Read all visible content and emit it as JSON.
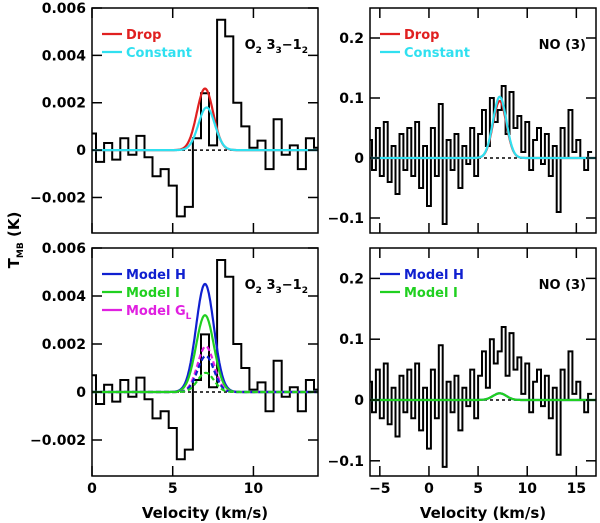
{
  "chart_data": [
    {
      "type": "line",
      "panel": "top-left",
      "xlim": [
        0,
        14
      ],
      "ylim": [
        -0.0035,
        0.006
      ],
      "xticks": [
        0,
        5,
        10
      ],
      "yticks": [
        -0.002,
        0,
        0.002,
        0.004,
        0.006
      ],
      "ytick_labels": [
        "−0.002",
        "0",
        "0.002",
        "0.004",
        "0.006"
      ],
      "annotation": {
        "main": "O",
        "s1": "2",
        "mid": " 3",
        "s2": "3",
        "mid2": "−1",
        "s3": "2"
      },
      "legend": [
        {
          "name": "Drop",
          "color": "#e02020"
        },
        {
          "name": "Constant",
          "color": "#30e0f0"
        }
      ],
      "observed": {
        "x": [
          0,
          0.5,
          1,
          1.5,
          2,
          2.5,
          3,
          3.5,
          4,
          4.5,
          5,
          5.5,
          6,
          6.5,
          7,
          7.5,
          8,
          8.5,
          9,
          9.5,
          10,
          10.5,
          11,
          11.5,
          12,
          12.5,
          13,
          13.5,
          14
        ],
        "y": [
          0.0007,
          -0.0005,
          0.0003,
          -0.0004,
          0.0005,
          -0.0002,
          0.0006,
          -0.0003,
          -0.0011,
          -0.0008,
          -0.0015,
          -0.0028,
          -0.0024,
          0.0005,
          0.0024,
          0.0002,
          0.0055,
          0.0048,
          0.002,
          0.001,
          0.0001,
          0.0004,
          -0.0008,
          0.0013,
          -0.0002,
          0.0002,
          -0.0008,
          0.0005,
          0.0001
        ]
      },
      "models": [
        {
          "name": "Drop",
          "color": "#e02020",
          "amp": 0.0026,
          "center": 7.0,
          "fwhm": 1.2
        },
        {
          "name": "Constant",
          "color": "#30e0f0",
          "amp": 0.0018,
          "center": 7.1,
          "fwhm": 1.2
        }
      ]
    },
    {
      "type": "line",
      "panel": "top-right",
      "xlim": [
        -6,
        17
      ],
      "ylim": [
        -0.125,
        0.25
      ],
      "xticks": [
        -5,
        0,
        5,
        10,
        15
      ],
      "yticks": [
        -0.1,
        0,
        0.1,
        0.2
      ],
      "ytick_labels": [
        "−0.1",
        "0",
        "0.1",
        "0.2"
      ],
      "annotation": {
        "main": "NO (3)"
      },
      "legend": [
        {
          "name": "Drop",
          "color": "#e02020"
        },
        {
          "name": "Constant",
          "color": "#30e0f0"
        }
      ],
      "observed": {
        "x": [
          -6,
          -5.6,
          -5.2,
          -4.8,
          -4.4,
          -4.0,
          -3.6,
          -3.2,
          -2.8,
          -2.4,
          -2.0,
          -1.6,
          -1.2,
          -0.8,
          -0.4,
          0,
          0.4,
          0.8,
          1.2,
          1.6,
          2.0,
          2.4,
          2.8,
          3.2,
          3.6,
          4.0,
          4.4,
          4.8,
          5.2,
          5.6,
          6.0,
          6.4,
          6.8,
          7.2,
          7.6,
          8.0,
          8.4,
          8.8,
          9.2,
          9.6,
          10.0,
          10.4,
          10.8,
          11.2,
          11.6,
          12.0,
          12.4,
          12.8,
          13.2,
          13.6,
          14.0,
          14.4,
          14.8,
          15.2,
          15.6,
          16.0,
          16.4
        ],
        "y": [
          0.03,
          -0.02,
          0.05,
          -0.03,
          0.06,
          -0.04,
          0.02,
          -0.06,
          0.04,
          -0.02,
          0.05,
          -0.03,
          0.06,
          -0.05,
          0.02,
          -0.08,
          0.05,
          -0.03,
          0.09,
          -0.11,
          0.03,
          -0.02,
          0.04,
          -0.05,
          0.02,
          -0.01,
          0.05,
          -0.03,
          0.04,
          0.08,
          0.02,
          0.1,
          0.06,
          0.08,
          0.12,
          0.04,
          0.11,
          0.05,
          0.07,
          0.01,
          0.06,
          -0.02,
          0.03,
          0.05,
          -0.01,
          0.04,
          -0.03,
          0.02,
          -0.09,
          0.05,
          0.0,
          0.08,
          0.01,
          0.03,
          0.0,
          -0.02,
          0.01
        ]
      },
      "models": [
        {
          "name": "Drop",
          "color": "#e02020",
          "amp": 0.095,
          "center": 7.2,
          "fwhm": 1.6
        },
        {
          "name": "Constant",
          "color": "#30e0f0",
          "amp": 0.102,
          "center": 7.2,
          "fwhm": 1.6
        }
      ]
    },
    {
      "type": "line",
      "panel": "bottom-left",
      "xlim": [
        0,
        14
      ],
      "ylim": [
        -0.0035,
        0.006
      ],
      "xticks": [
        0,
        5,
        10
      ],
      "xtick_labels": [
        "0",
        "5",
        "10"
      ],
      "yticks": [
        -0.002,
        0,
        0.002,
        0.004,
        0.006
      ],
      "ytick_labels": [
        "−0.002",
        "0",
        "0.002",
        "0.004",
        "0.006"
      ],
      "xlabel": "Velocity (km/s)",
      "ylabel": {
        "main": "T",
        "sub": "MB",
        "rest": " (K)"
      },
      "annotation": {
        "main": "O",
        "s1": "2",
        "mid": " 3",
        "s2": "3",
        "mid2": "−1",
        "s3": "2"
      },
      "legend": [
        {
          "name": "Model H",
          "color": "#1020d0"
        },
        {
          "name": "Model I",
          "color": "#20d020"
        },
        {
          "name": "Model G",
          "sub": "L",
          "color": "#e020e0"
        }
      ],
      "observed": {
        "x": [
          0,
          0.5,
          1,
          1.5,
          2,
          2.5,
          3,
          3.5,
          4,
          4.5,
          5,
          5.5,
          6,
          6.5,
          7,
          7.5,
          8,
          8.5,
          9,
          9.5,
          10,
          10.5,
          11,
          11.5,
          12,
          12.5,
          13,
          13.5,
          14
        ],
        "y": [
          0.0007,
          -0.0005,
          0.0003,
          -0.0004,
          0.0005,
          -0.0002,
          0.0006,
          -0.0003,
          -0.0011,
          -0.0008,
          -0.0015,
          -0.0028,
          -0.0024,
          0.0005,
          0.0024,
          0.0002,
          0.0055,
          0.0048,
          0.002,
          0.001,
          0.0001,
          0.0004,
          -0.0008,
          0.0013,
          -0.0002,
          0.0002,
          -0.0008,
          0.0005,
          0.0001
        ]
      },
      "models": [
        {
          "name": "Model H",
          "color": "#1020d0",
          "amp": 0.0045,
          "center": 7.0,
          "fwhm": 1.3
        },
        {
          "name": "Model I",
          "color": "#20d020",
          "amp": 0.0032,
          "center": 7.0,
          "fwhm": 1.3
        },
        {
          "name": "Model G_L",
          "color": "#e020e0",
          "amp": 0.0019,
          "center": 7.05,
          "fwhm": 1.2,
          "dashed": true
        },
        {
          "name": "Model H (dashed)",
          "color": "#1020d0",
          "amp": 0.0015,
          "center": 7.05,
          "fwhm": 1.2,
          "dashed": true
        },
        {
          "name": "Model I (dashed)",
          "color": "#20d020",
          "amp": 0.0008,
          "center": 7.05,
          "fwhm": 1.2,
          "dashed": true
        }
      ]
    },
    {
      "type": "line",
      "panel": "bottom-right",
      "xlim": [
        -6,
        17
      ],
      "ylim": [
        -0.125,
        0.25
      ],
      "xticks": [
        -5,
        0,
        5,
        10,
        15
      ],
      "xtick_labels": [
        "−5",
        "0",
        "5",
        "10",
        "15"
      ],
      "yticks": [
        -0.1,
        0,
        0.1,
        0.2
      ],
      "ytick_labels": [
        "−0.1",
        "0",
        "0.1",
        "0.2"
      ],
      "xlabel": "Velocity (km/s)",
      "annotation": {
        "main": "NO (3)"
      },
      "legend": [
        {
          "name": "Model H",
          "color": "#1020d0"
        },
        {
          "name": "Model I",
          "color": "#20d020"
        }
      ],
      "observed": {
        "x": [
          -6,
          -5.6,
          -5.2,
          -4.8,
          -4.4,
          -4.0,
          -3.6,
          -3.2,
          -2.8,
          -2.4,
          -2.0,
          -1.6,
          -1.2,
          -0.8,
          -0.4,
          0,
          0.4,
          0.8,
          1.2,
          1.6,
          2.0,
          2.4,
          2.8,
          3.2,
          3.6,
          4.0,
          4.4,
          4.8,
          5.2,
          5.6,
          6.0,
          6.4,
          6.8,
          7.2,
          7.6,
          8.0,
          8.4,
          8.8,
          9.2,
          9.6,
          10.0,
          10.4,
          10.8,
          11.2,
          11.6,
          12.0,
          12.4,
          12.8,
          13.2,
          13.6,
          14.0,
          14.4,
          14.8,
          15.2,
          15.6,
          16.0,
          16.4
        ],
        "y": [
          0.03,
          -0.02,
          0.05,
          -0.03,
          0.06,
          -0.04,
          0.02,
          -0.06,
          0.04,
          -0.02,
          0.05,
          -0.03,
          0.06,
          -0.05,
          0.02,
          -0.08,
          0.05,
          -0.03,
          0.09,
          -0.11,
          0.03,
          -0.02,
          0.04,
          -0.05,
          0.02,
          -0.01,
          0.05,
          -0.03,
          0.04,
          0.08,
          0.02,
          0.1,
          0.06,
          0.08,
          0.12,
          0.04,
          0.11,
          0.05,
          0.07,
          0.01,
          0.06,
          -0.02,
          0.03,
          0.05,
          -0.01,
          0.04,
          -0.03,
          0.02,
          -0.09,
          0.05,
          0.0,
          0.08,
          0.01,
          0.03,
          0.0,
          -0.02,
          0.01
        ]
      },
      "models": [
        {
          "name": "Model H",
          "color": "#1020d0",
          "amp": 0.011,
          "center": 7.2,
          "fwhm": 1.6
        },
        {
          "name": "Model I",
          "color": "#20d020",
          "amp": 0.011,
          "center": 7.2,
          "fwhm": 1.6
        }
      ]
    }
  ]
}
